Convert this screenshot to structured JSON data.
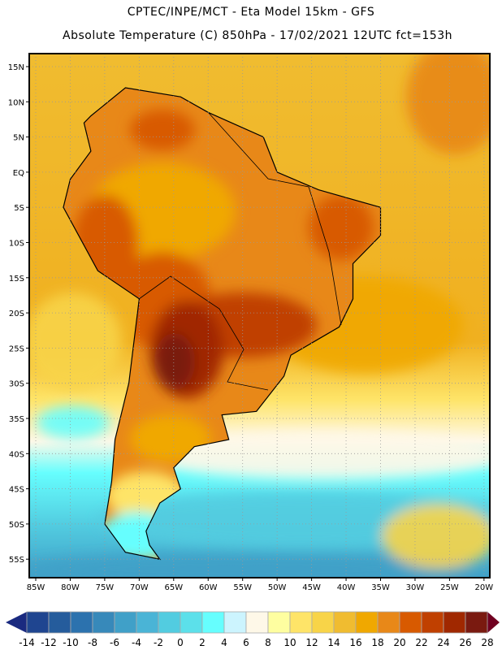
{
  "header": {
    "title": "CPTEC/INPE/MCT -  Eta Model 15km - GFS",
    "subtitle": "Absolute Temperature (C) 850hPa - 17/02/2021 12UTC fct=153h"
  },
  "map": {
    "lat_labels": [
      "15N",
      "10N",
      "5N",
      "EQ",
      "5S",
      "10S",
      "15S",
      "20S",
      "25S",
      "30S",
      "35S",
      "40S",
      "45S",
      "50S",
      "55S"
    ],
    "lon_labels": [
      "85W",
      "80W",
      "75W",
      "70W",
      "65W",
      "60W",
      "55W",
      "50W",
      "45W",
      "40W",
      "35W",
      "30W",
      "25W",
      "20W"
    ]
  },
  "colorbar": {
    "labels": [
      "-14",
      "-12",
      "-10",
      "-8",
      "-6",
      "-4",
      "-2",
      "0",
      "2",
      "4",
      "6",
      "8",
      "10",
      "12",
      "14",
      "16",
      "18",
      "20",
      "22",
      "24",
      "26",
      "28"
    ],
    "colors": [
      "#1f4590",
      "#255c9c",
      "#2c72ae",
      "#3789ba",
      "#40a0c8",
      "#4ab4d6",
      "#52cce0",
      "#5ce0ea",
      "#66fefe",
      "#ccf4fe",
      "#fef8e8",
      "#fefea0",
      "#fee468",
      "#f8d448",
      "#f0bc30",
      "#f0a800",
      "#e88818",
      "#d85a00",
      "#c04000",
      "#a02800",
      "#7a1a10"
    ],
    "under_color": "#1a2a80",
    "over_color": "#700020"
  }
}
